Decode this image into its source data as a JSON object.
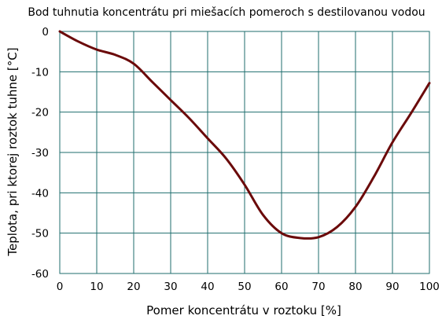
{
  "chart_data": {
    "type": "line",
    "title": "Bod tuhnutia koncentrátu pri miešacích pomeroch s destilovanou vodou",
    "xlabel": "Pomer koncentrátu v roztoku [%]",
    "ylabel": "Teplota, pri ktorej roztok tuhne [°C]",
    "xlim": [
      0,
      100
    ],
    "ylim": [
      -60,
      0
    ],
    "xticks": [
      0,
      10,
      20,
      30,
      40,
      50,
      60,
      70,
      80,
      90,
      100
    ],
    "xtick_labels": [
      "0",
      "10",
      "20",
      "30",
      "40",
      "50",
      "60",
      "70",
      "80",
      "90",
      "100"
    ],
    "yticks": [
      0,
      -10,
      -20,
      -30,
      -40,
      -50,
      -60
    ],
    "ytick_labels": [
      "0",
      "-10",
      "-20",
      "-30",
      "-40",
      "-50",
      "-60"
    ],
    "grid": true,
    "legend": "none",
    "series": [
      {
        "color": "#6b0a0a",
        "x": [
          0,
          5,
          10,
          15,
          20,
          25,
          30,
          35,
          40,
          45,
          50,
          55,
          60,
          65,
          70,
          75,
          80,
          85,
          90,
          95,
          100
        ],
        "y": [
          0,
          -2.5,
          -4.5,
          -5.8,
          -8,
          -12.5,
          -17,
          -21.5,
          -26.5,
          -31.5,
          -38,
          -45.5,
          -50,
          -51.2,
          -51,
          -48.5,
          -43.5,
          -36,
          -27.5,
          -20.3,
          -12.8
        ]
      }
    ]
  }
}
